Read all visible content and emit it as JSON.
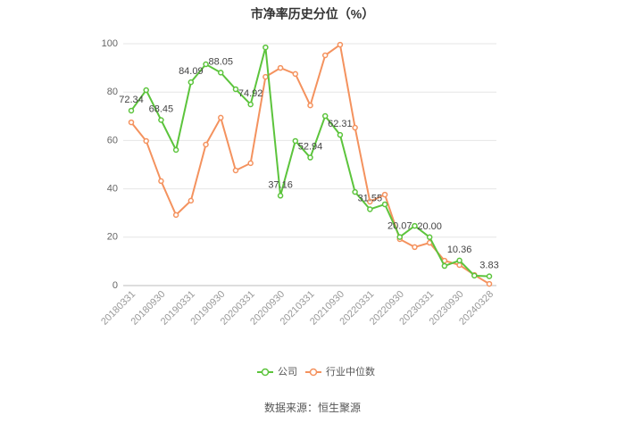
{
  "chart_data": {
    "type": "line",
    "title": "市净率历史分位（%）",
    "categories": [
      "20180331",
      null,
      "20180930",
      null,
      "20190331",
      null,
      "20190930",
      null,
      "20200331",
      null,
      "20200930",
      null,
      "20210331",
      null,
      "20210930",
      null,
      "20220331",
      null,
      "20220930",
      null,
      "20230331",
      null,
      "20230930",
      null,
      "20240328"
    ],
    "series": [
      {
        "name": "公司",
        "color": "#5cc43c",
        "values": [
          72.34,
          80.8,
          68.45,
          56.1,
          84.09,
          91.5,
          88.05,
          81.2,
          74.92,
          98.5,
          37.16,
          59.8,
          52.94,
          70.1,
          62.31,
          38.7,
          31.55,
          33.6,
          20.07,
          24.7,
          20.0,
          8.1,
          10.36,
          4.1,
          3.83
        ],
        "value_labels": [
          "72.34",
          null,
          "68.45",
          null,
          "84.09",
          null,
          "88.05",
          null,
          "74.92",
          null,
          "37.16",
          null,
          "52.94",
          null,
          "62.31",
          null,
          "31.55",
          null,
          "20.07",
          null,
          "20.00",
          null,
          "10.36",
          null,
          "3.83"
        ]
      },
      {
        "name": "行业中位数",
        "color": "#f4925e",
        "values": [
          67.5,
          59.8,
          43.2,
          29.2,
          35.1,
          58.3,
          69.4,
          47.6,
          50.6,
          86.3,
          90.0,
          87.5,
          74.5,
          95.2,
          99.6,
          65.3,
          34.7,
          37.6,
          19.2,
          15.9,
          17.7,
          10.3,
          8.5,
          4.4,
          0.7
        ]
      }
    ],
    "ylim": [
      0,
      100
    ],
    "yticks": [
      0,
      20,
      40,
      60,
      80,
      100
    ],
    "grid": true,
    "source": "数据来源：恒生聚源"
  }
}
